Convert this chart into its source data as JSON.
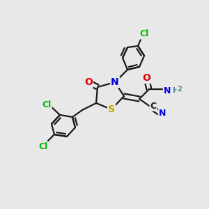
{
  "bg_color": "#e8e8e8",
  "bond_color": "#1a1a1a",
  "bond_width": 1.6,
  "atom_colors": {
    "C": "#1a1a1a",
    "N": "#0000dd",
    "O": "#dd0000",
    "S": "#bbaa00",
    "Cl": "#00bb00",
    "NH2": "#558899"
  },
  "fig_size": [
    3.0,
    3.0
  ],
  "dpi": 100
}
